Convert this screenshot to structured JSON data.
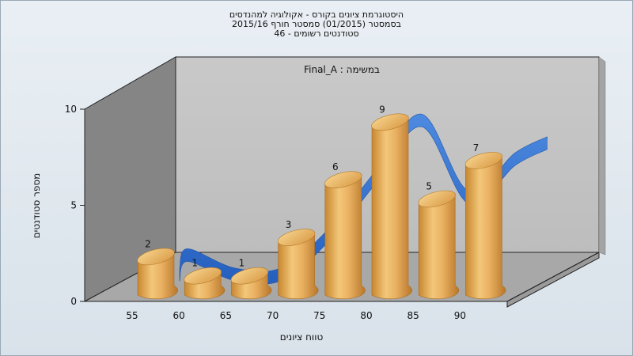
{
  "chart_data": {
    "type": "bar",
    "title_lines": [
      "היסטוגרמת ציונים בקורס - אקולוגיה למהנדסים",
      "בסמסטר  (01/2015)  סמסטר חורף 2015/16",
      "סטודנטים רשומים - 46"
    ],
    "annotation": "Final_A : במשימה",
    "xlabel": "טווח ציונים",
    "ylabel": "מספר סטודנטים",
    "categories": [
      "55",
      "60",
      "65",
      "70",
      "75",
      "80",
      "85",
      "90"
    ],
    "values": [
      2,
      1,
      1,
      3,
      6,
      9,
      5,
      7
    ],
    "yticks": [
      "0",
      "5",
      "10"
    ],
    "ylim": [
      0,
      10
    ],
    "grid": false,
    "colors": {
      "bar": "#e2a84e",
      "bar_dark": "#b97a2a",
      "bar_light": "#f6cf86",
      "trend": "#2f6fd0",
      "back_wall": "#c8c8c8",
      "side_wall": "#808080",
      "floor": "#a9a9a9"
    }
  }
}
